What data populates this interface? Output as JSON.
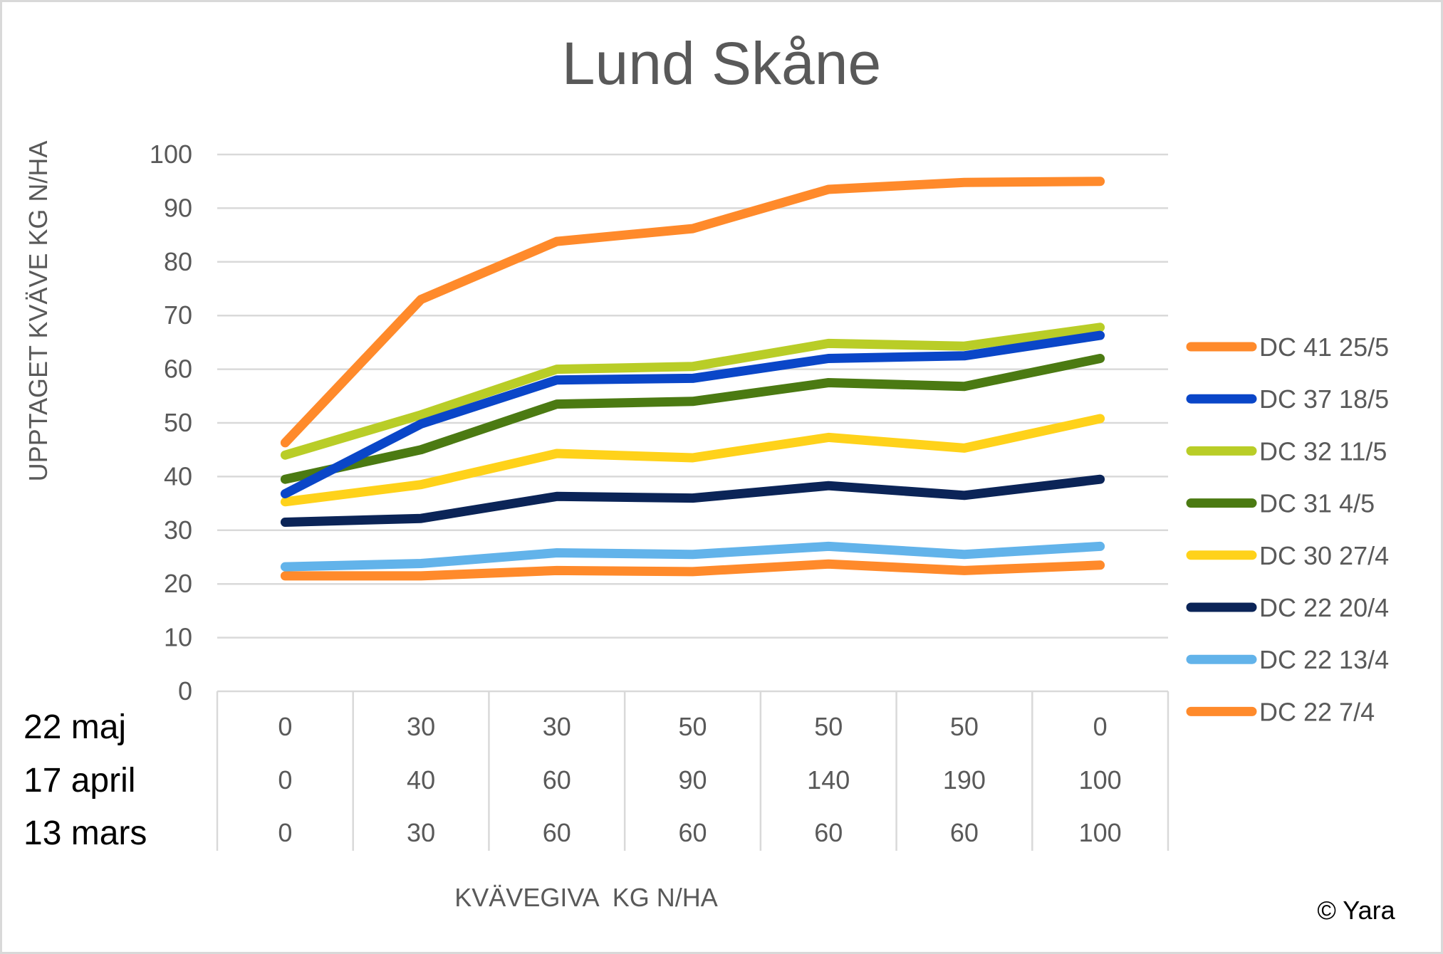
{
  "chart_data": {
    "type": "line",
    "title": "Lund Skåne",
    "ylabel": "UPPTAGET KVÄVE KG N/HA",
    "xlabel": "KVÄVEGIVA  KG N/HA",
    "ylim": [
      0,
      100
    ],
    "yticks": [
      0,
      10,
      20,
      30,
      40,
      50,
      60,
      70,
      80,
      90,
      100
    ],
    "grid": true,
    "legend_position": "right",
    "x_category_rows": [
      {
        "label": "22 maj",
        "values": [
          "0",
          "30",
          "30",
          "50",
          "50",
          "50",
          "0"
        ]
      },
      {
        "label": "17 april",
        "values": [
          "0",
          "40",
          "60",
          "90",
          "140",
          "190",
          "100"
        ]
      },
      {
        "label": "13 mars",
        "values": [
          "0",
          "30",
          "60",
          "60",
          "60",
          "60",
          "100"
        ]
      }
    ],
    "series": [
      {
        "name": "DC 41 25/5",
        "color": "#FF8A2B",
        "values": [
          46.3,
          73.0,
          83.8,
          86.2,
          93.5,
          94.8,
          95.0
        ]
      },
      {
        "name": "DC 37 18/5",
        "color": "#0A46C8",
        "values": [
          36.8,
          49.8,
          58.0,
          58.3,
          62.0,
          62.5,
          66.3
        ]
      },
      {
        "name": "DC 32 11/5",
        "color": "#B9CD27",
        "values": [
          44.0,
          51.5,
          60.0,
          60.5,
          64.8,
          64.3,
          67.8
        ]
      },
      {
        "name": "DC 31 4/5",
        "color": "#4B7A12",
        "values": [
          39.5,
          45.0,
          53.5,
          54.0,
          57.5,
          56.8,
          62.0
        ]
      },
      {
        "name": "DC 30 27/4",
        "color": "#FFD21A",
        "values": [
          35.3,
          38.5,
          44.3,
          43.5,
          47.3,
          45.3,
          50.8
        ]
      },
      {
        "name": "DC 22 20/4",
        "color": "#0B2457",
        "values": [
          31.5,
          32.2,
          36.3,
          36.0,
          38.3,
          36.5,
          39.5
        ]
      },
      {
        "name": "DC 22 13/4",
        "color": "#62B3EA",
        "values": [
          23.2,
          23.8,
          25.8,
          25.5,
          27.0,
          25.5,
          27.0
        ]
      },
      {
        "name": "DC 22 7/4",
        "color": "#FF8A2B",
        "values": [
          21.5,
          21.5,
          22.5,
          22.3,
          23.7,
          22.5,
          23.5
        ]
      }
    ],
    "annotation": "© Yara"
  }
}
